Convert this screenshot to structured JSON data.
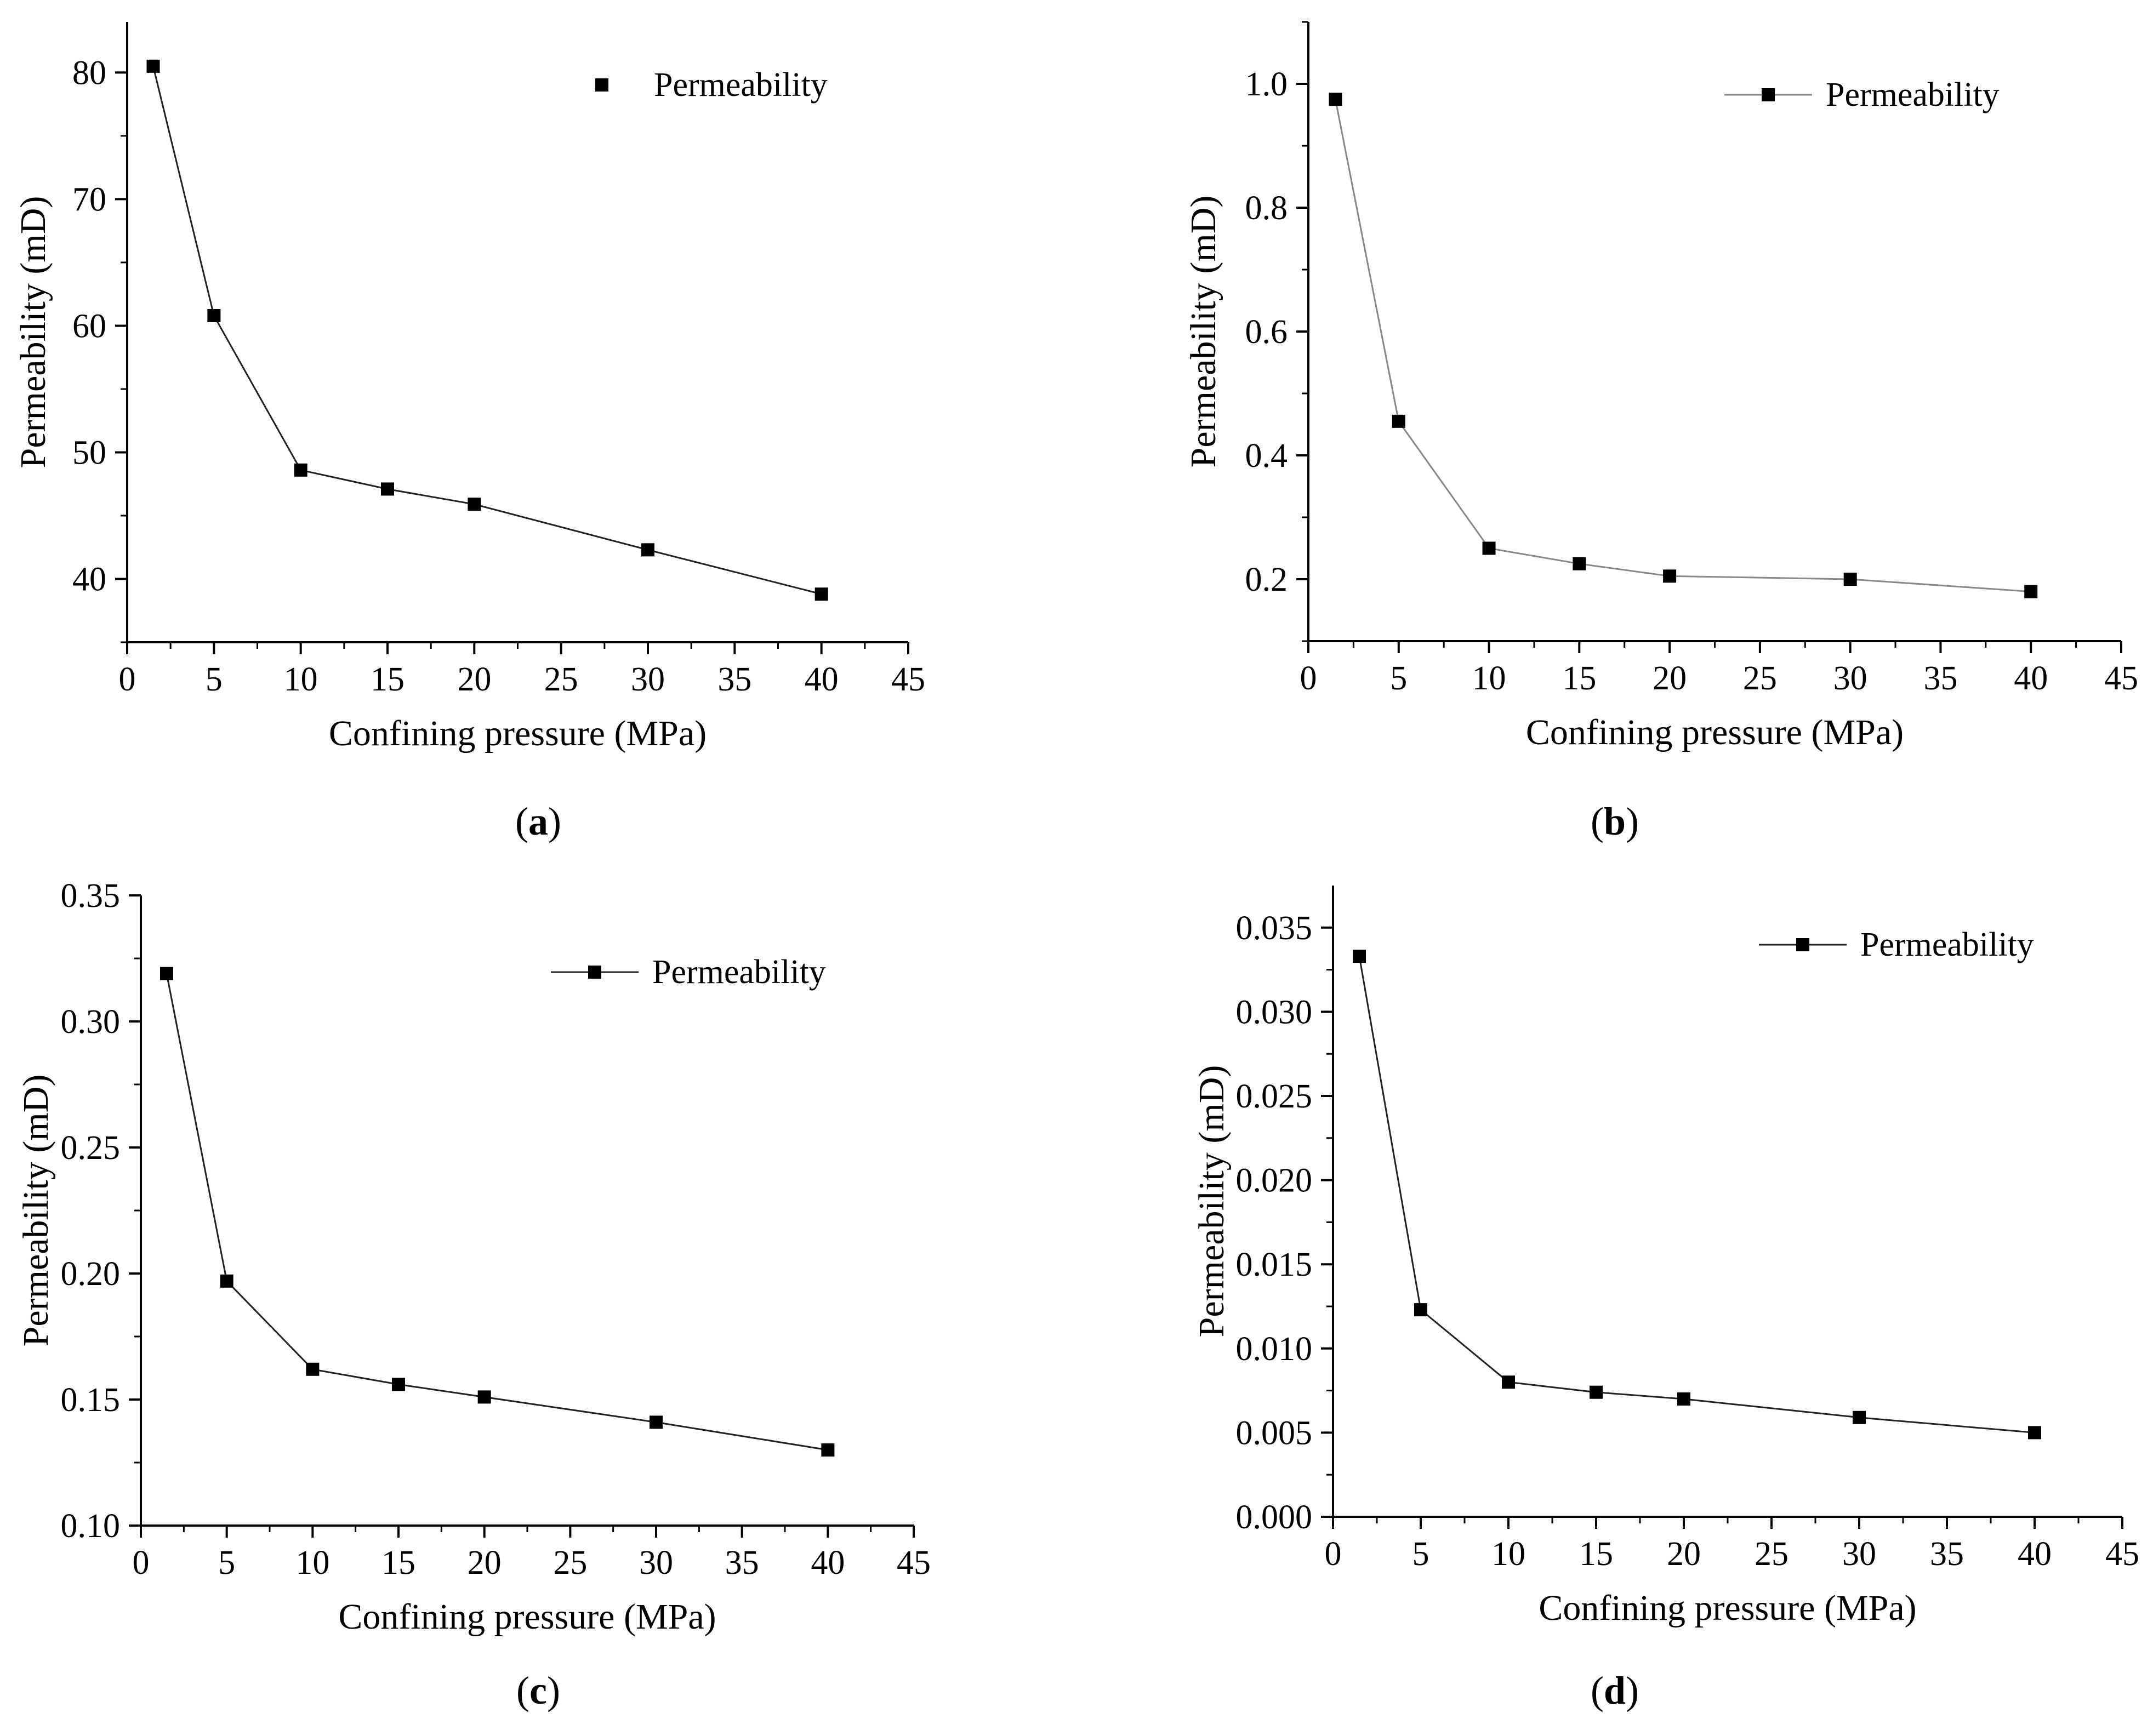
{
  "captions": [
    "a",
    "b",
    "c",
    "d"
  ],
  "chart_data": [
    {
      "type": "line",
      "panel": "a",
      "title": "",
      "xlabel": "Confining pressure (MPa)",
      "ylabel": "Permeability (mD)",
      "xlim": [
        0,
        45
      ],
      "ylim": [
        35,
        84
      ],
      "xticks": [
        0,
        5,
        10,
        15,
        20,
        25,
        30,
        35,
        40,
        45
      ],
      "yticks": [
        40,
        50,
        60,
        70,
        80
      ],
      "ytick_labels": [
        "40",
        "50",
        "60",
        "70",
        "80"
      ],
      "legend": "top-right",
      "legend_line": false,
      "series": [
        {
          "name": "Permeability",
          "x": [
            1.5,
            5,
            10,
            15,
            20,
            30,
            40
          ],
          "y": [
            80.5,
            60.8,
            48.6,
            47.1,
            45.9,
            42.3,
            38.8
          ]
        }
      ]
    },
    {
      "type": "line",
      "panel": "b",
      "title": "",
      "xlabel": "Confining pressure (MPa)",
      "ylabel": "Permeability (mD)",
      "xlim": [
        0,
        45
      ],
      "ylim": [
        0.1,
        1.1
      ],
      "xticks": [
        0,
        5,
        10,
        15,
        20,
        25,
        30,
        35,
        40,
        45
      ],
      "yticks": [
        0.2,
        0.4,
        0.6,
        0.8,
        1.0
      ],
      "ytick_labels": [
        "0.2",
        "0.4",
        "0.6",
        "0.8",
        "1.0"
      ],
      "legend": "top-right",
      "legend_line": true,
      "series": [
        {
          "name": "Permeability",
          "x": [
            1.5,
            5,
            10,
            15,
            20,
            30,
            40
          ],
          "y": [
            0.975,
            0.455,
            0.25,
            0.225,
            0.205,
            0.2,
            0.18
          ]
        }
      ]
    },
    {
      "type": "line",
      "panel": "c",
      "title": "",
      "xlabel": "Confining pressure (MPa)",
      "ylabel": "Permeability (mD)",
      "xlim": [
        0,
        45
      ],
      "ylim": [
        0.1,
        0.35
      ],
      "xticks": [
        0,
        5,
        10,
        15,
        20,
        25,
        30,
        35,
        40,
        45
      ],
      "yticks": [
        0.1,
        0.15,
        0.2,
        0.25,
        0.3,
        0.35
      ],
      "ytick_labels": [
        "0.10",
        "0.15",
        "0.20",
        "0.25",
        "0.30",
        "0.35"
      ],
      "legend": "top-right",
      "legend_line": true,
      "series": [
        {
          "name": "Permeability",
          "x": [
            1.5,
            5,
            10,
            15,
            20,
            30,
            40
          ],
          "y": [
            0.319,
            0.197,
            0.162,
            0.156,
            0.151,
            0.141,
            0.13
          ]
        }
      ]
    },
    {
      "type": "line",
      "panel": "d",
      "title": "",
      "xlabel": "Confining pressure (MPa)",
      "ylabel": "Permeability (mD)",
      "xlim": [
        0,
        45
      ],
      "ylim": [
        0,
        0.0375
      ],
      "xticks": [
        0,
        5,
        10,
        15,
        20,
        25,
        30,
        35,
        40,
        45
      ],
      "yticks": [
        0,
        0.005,
        0.01,
        0.015,
        0.02,
        0.025,
        0.03,
        0.035
      ],
      "ytick_labels": [
        "0.000",
        "0.005",
        "0.010",
        "0.015",
        "0.020",
        "0.025",
        "0.030",
        "0.035"
      ],
      "legend": "top-right",
      "legend_line": true,
      "series": [
        {
          "name": "Permeability",
          "x": [
            1.5,
            5,
            10,
            15,
            20,
            30,
            40
          ],
          "y": [
            0.0333,
            0.0123,
            0.008,
            0.0074,
            0.007,
            0.0059,
            0.005
          ]
        }
      ]
    }
  ]
}
